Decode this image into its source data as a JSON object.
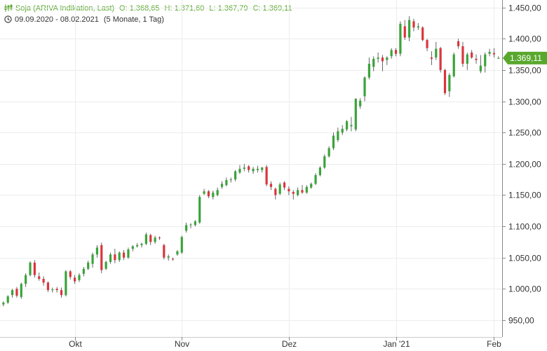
{
  "header": {
    "title": "Soja (ARIVA Indikation, Last)",
    "open": "O: 1.368,65",
    "high": "H: 1.371,60",
    "low": "L: 1.367,79",
    "close": "C: 1.369,11",
    "range": "09.09.2020 - 08.02.2021",
    "period": "(5 Monate, 1 Tag)"
  },
  "last_price_label": "1.369,11",
  "colors": {
    "up": "#3aa33a",
    "down": "#d9363e",
    "accent": "#59a82e",
    "grid": "#ececec",
    "axis": "#888888"
  },
  "chart_data": {
    "type": "candlestick",
    "x_tick_labels": [
      "Okt",
      "Nov",
      "Dez",
      "Jan '21",
      "Feb"
    ],
    "x_tick_index": [
      17,
      41,
      65,
      89,
      111
    ],
    "y_tick_values": [
      950,
      1000,
      1050,
      1100,
      1150,
      1200,
      1250,
      1300,
      1350,
      1400,
      1450
    ],
    "y_tick_labels": [
      "950,00",
      "1.000,00",
      "1.050,00",
      "1.100,00",
      "1.150,00",
      "1.200,00",
      "1.250,00",
      "1.300,00",
      "1.350,00",
      "1.400,00",
      "1.450,00"
    ],
    "ylim": [
      923,
      1462
    ],
    "last_close": 1369.11,
    "candles": [
      [
        975,
        978,
        969,
        971
      ],
      [
        975,
        980,
        972,
        978
      ],
      [
        978,
        990,
        976,
        988
      ],
      [
        990,
        1000,
        986,
        998
      ],
      [
        1000,
        1003,
        986,
        989
      ],
      [
        987,
        1010,
        984,
        1008
      ],
      [
        1008,
        1025,
        1003,
        1022
      ],
      [
        1022,
        1044,
        1020,
        1042
      ],
      [
        1042,
        1046,
        1018,
        1022
      ],
      [
        1020,
        1026,
        1013,
        1016
      ],
      [
        1016,
        1020,
        1005,
        1010
      ],
      [
        1010,
        1012,
        995,
        998
      ],
      [
        998,
        1002,
        994,
        999
      ],
      [
        1000,
        1003,
        994,
        998
      ],
      [
        998,
        1002,
        986,
        990
      ],
      [
        990,
        1030,
        988,
        1028
      ],
      [
        1028,
        1030,
        1015,
        1019
      ],
      [
        1018,
        1022,
        1008,
        1012
      ],
      [
        1014,
        1025,
        1011,
        1022
      ],
      [
        1024,
        1035,
        1020,
        1032
      ],
      [
        1032,
        1045,
        1030,
        1042
      ],
      [
        1040,
        1058,
        1034,
        1055
      ],
      [
        1055,
        1070,
        1050,
        1066
      ],
      [
        1070,
        1074,
        1025,
        1030
      ],
      [
        1032,
        1045,
        1030,
        1043
      ],
      [
        1043,
        1058,
        1040,
        1055
      ],
      [
        1055,
        1064,
        1041,
        1046
      ],
      [
        1046,
        1060,
        1043,
        1058
      ],
      [
        1058,
        1062,
        1046,
        1050
      ],
      [
        1050,
        1066,
        1048,
        1063
      ],
      [
        1064,
        1070,
        1060,
        1068
      ],
      [
        1068,
        1073,
        1066,
        1070
      ],
      [
        1070,
        1074,
        1066,
        1072
      ],
      [
        1072,
        1090,
        1070,
        1087
      ],
      [
        1086,
        1088,
        1070,
        1075
      ],
      [
        1075,
        1085,
        1072,
        1082
      ],
      [
        1082,
        1084,
        1078,
        1081
      ],
      [
        1070,
        1072,
        1047,
        1050
      ],
      [
        1050,
        1055,
        1045,
        1052
      ],
      [
        1048,
        1050,
        1045,
        1047
      ],
      [
        1055,
        1062,
        1053,
        1060
      ],
      [
        1058,
        1085,
        1056,
        1083
      ],
      [
        1093,
        1106,
        1090,
        1102
      ],
      [
        1102,
        1105,
        1097,
        1103
      ],
      [
        1102,
        1110,
        1100,
        1108
      ],
      [
        1106,
        1150,
        1104,
        1147
      ],
      [
        1152,
        1160,
        1150,
        1156
      ],
      [
        1156,
        1158,
        1145,
        1148
      ],
      [
        1147,
        1157,
        1143,
        1154
      ],
      [
        1150,
        1162,
        1148,
        1158
      ],
      [
        1163,
        1172,
        1160,
        1168
      ],
      [
        1166,
        1178,
        1164,
        1174
      ],
      [
        1174,
        1178,
        1170,
        1175
      ],
      [
        1175,
        1190,
        1172,
        1188
      ],
      [
        1186,
        1198,
        1184,
        1192
      ],
      [
        1192,
        1200,
        1188,
        1194
      ],
      [
        1196,
        1198,
        1186,
        1190
      ],
      [
        1188,
        1195,
        1184,
        1192
      ],
      [
        1190,
        1197,
        1186,
        1192
      ],
      [
        1190,
        1195,
        1186,
        1194
      ],
      [
        1195,
        1198,
        1164,
        1167
      ],
      [
        1168,
        1172,
        1158,
        1163
      ],
      [
        1160,
        1162,
        1143,
        1150
      ],
      [
        1152,
        1170,
        1150,
        1167
      ],
      [
        1170,
        1172,
        1158,
        1162
      ],
      [
        1160,
        1164,
        1150,
        1156
      ],
      [
        1155,
        1158,
        1143,
        1152
      ],
      [
        1150,
        1162,
        1148,
        1158
      ],
      [
        1158,
        1166,
        1152,
        1154
      ],
      [
        1154,
        1166,
        1152,
        1163
      ],
      [
        1162,
        1170,
        1160,
        1168
      ],
      [
        1168,
        1185,
        1166,
        1182
      ],
      [
        1182,
        1196,
        1180,
        1194
      ],
      [
        1194,
        1215,
        1192,
        1212
      ],
      [
        1212,
        1228,
        1210,
        1225
      ],
      [
        1225,
        1250,
        1222,
        1245
      ],
      [
        1238,
        1258,
        1235,
        1252
      ],
      [
        1250,
        1262,
        1246,
        1256
      ],
      [
        1255,
        1270,
        1252,
        1268
      ],
      [
        1260,
        1275,
        1252,
        1262
      ],
      [
        1255,
        1305,
        1252,
        1304
      ],
      [
        1292,
        1305,
        1288,
        1301
      ],
      [
        1308,
        1340,
        1300,
        1338
      ],
      [
        1338,
        1370,
        1335,
        1360
      ],
      [
        1355,
        1372,
        1348,
        1368
      ],
      [
        1368,
        1378,
        1362,
        1370
      ],
      [
        1370,
        1374,
        1348,
        1364
      ],
      [
        1366,
        1372,
        1358,
        1370
      ],
      [
        1372,
        1385,
        1368,
        1382
      ],
      [
        1382,
        1385,
        1372,
        1376
      ],
      [
        1376,
        1428,
        1372,
        1424
      ],
      [
        1420,
        1430,
        1398,
        1402
      ],
      [
        1402,
        1436,
        1396,
        1430
      ],
      [
        1428,
        1432,
        1412,
        1418
      ],
      [
        1418,
        1425,
        1414,
        1420
      ],
      [
        1418,
        1420,
        1396,
        1398
      ],
      [
        1398,
        1400,
        1380,
        1385
      ],
      [
        1370,
        1380,
        1358,
        1368
      ],
      [
        1370,
        1395,
        1366,
        1384
      ],
      [
        1385,
        1387,
        1346,
        1350
      ],
      [
        1350,
        1352,
        1310,
        1313
      ],
      [
        1316,
        1345,
        1307,
        1342
      ],
      [
        1340,
        1378,
        1338,
        1375
      ],
      [
        1396,
        1400,
        1384,
        1388
      ],
      [
        1388,
        1395,
        1355,
        1360
      ],
      [
        1360,
        1378,
        1350,
        1375
      ],
      [
        1378,
        1382,
        1368,
        1370
      ],
      [
        1368,
        1375,
        1360,
        1366
      ],
      [
        1348,
        1374,
        1345,
        1357
      ],
      [
        1356,
        1378,
        1346,
        1375
      ],
      [
        1376,
        1384,
        1372,
        1379
      ],
      [
        1377,
        1385,
        1370,
        1375
      ],
      [
        1369,
        1372,
        1368,
        1369.11
      ]
    ]
  }
}
